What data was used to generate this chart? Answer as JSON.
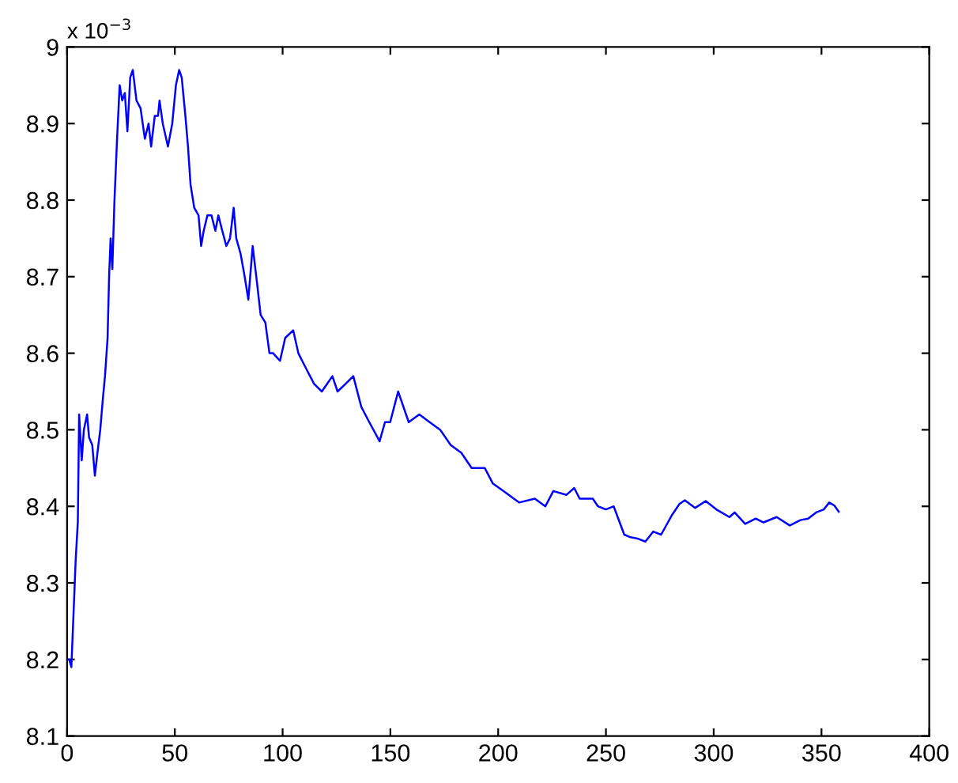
{
  "chart_data": {
    "type": "line",
    "x": [
      0,
      1,
      2,
      3,
      4,
      5,
      5.6,
      6.8,
      7.8,
      9.3,
      10.2,
      11.7,
      12.9,
      14.1,
      15.4,
      16.6,
      17.6,
      18.8,
      19.5,
      20.2,
      21,
      22,
      23.2,
      24.4,
      25.6,
      26.8,
      28,
      29.3,
      30.5,
      32.2,
      34.1,
      36.1,
      37.8,
      39,
      40.7,
      42.2,
      42.9,
      44.4,
      46.8,
      48.8,
      50.5,
      52,
      53.2,
      54.9,
      56.1,
      57.3,
      59,
      61,
      62.2,
      63.4,
      65.1,
      67,
      68.8,
      70.2,
      72,
      73.9,
      75.6,
      77.3,
      78.5,
      80.5,
      82.4,
      84.1,
      86.1,
      87.8,
      89.8,
      92,
      93.9,
      95.6,
      98.8,
      101.2,
      104.9,
      107.3,
      110.9,
      114.6,
      118.2,
      123.1,
      125.5,
      129.2,
      132.8,
      136.5,
      140.2,
      145,
      147.5,
      149.9,
      153.6,
      158.5,
      163.4,
      168.2,
      173.1,
      178,
      182.9,
      187.7,
      193.8,
      197.5,
      202.4,
      209.7,
      217,
      221.9,
      225.6,
      231.7,
      235.3,
      237.8,
      243.9,
      246.3,
      250,
      253.6,
      258.5,
      261,
      264.6,
      268.3,
      271.9,
      275.6,
      280.5,
      284.1,
      286.6,
      291.4,
      296.3,
      301.2,
      307.3,
      309.7,
      314.6,
      319.5,
      323.1,
      329.2,
      335.3,
      340.2,
      343.8,
      347.5,
      351.1,
      353.6,
      356,
      358
    ],
    "series": [
      {
        "color": "#0000ff",
        "values": [
          8.2,
          8.2,
          8.19,
          8.26,
          8.33,
          8.38,
          8.52,
          8.46,
          8.5,
          8.52,
          8.49,
          8.48,
          8.44,
          8.47,
          8.5,
          8.54,
          8.57,
          8.62,
          8.7,
          8.75,
          8.71,
          8.8,
          8.88,
          8.95,
          8.93,
          8.94,
          8.89,
          8.96,
          8.97,
          8.93,
          8.92,
          8.88,
          8.9,
          8.87,
          8.91,
          8.91,
          8.93,
          8.9,
          8.87,
          8.9,
          8.95,
          8.97,
          8.96,
          8.91,
          8.87,
          8.82,
          8.79,
          8.78,
          8.74,
          8.76,
          8.78,
          8.78,
          8.76,
          8.78,
          8.76,
          8.74,
          8.75,
          8.79,
          8.75,
          8.73,
          8.7,
          8.67,
          8.74,
          8.7,
          8.65,
          8.64,
          8.6,
          8.6,
          8.59,
          8.62,
          8.63,
          8.6,
          8.58,
          8.56,
          8.55,
          8.57,
          8.55,
          8.56,
          8.57,
          8.53,
          8.51,
          8.485,
          8.51,
          8.51,
          8.55,
          8.51,
          8.52,
          8.51,
          8.5,
          8.48,
          8.47,
          8.45,
          8.45,
          8.43,
          8.42,
          8.405,
          8.41,
          8.4,
          8.42,
          8.415,
          8.424,
          8.41,
          8.41,
          8.4,
          8.396,
          8.4,
          8.363,
          8.36,
          8.358,
          8.354,
          8.367,
          8.363,
          8.388,
          8.403,
          8.408,
          8.398,
          8.407,
          8.396,
          8.386,
          8.392,
          8.377,
          8.384,
          8.379,
          8.386,
          8.375,
          8.382,
          8.384,
          8.392,
          8.396,
          8.405,
          8.401,
          8.393
        ]
      }
    ],
    "xlim": [
      0,
      400
    ],
    "xticks": [
      0,
      50,
      100,
      150,
      200,
      250,
      300,
      350,
      400
    ],
    "ylim": [
      8.1,
      9
    ],
    "yticks": [
      8.1,
      8.2,
      8.3,
      8.4,
      8.5,
      8.6,
      8.7,
      8.8,
      8.9,
      9
    ],
    "annotations": [
      "x 10$^{−3}$"
    ],
    "grid": false,
    "legend": false,
    "marker": "none",
    "line_style": "solid"
  }
}
